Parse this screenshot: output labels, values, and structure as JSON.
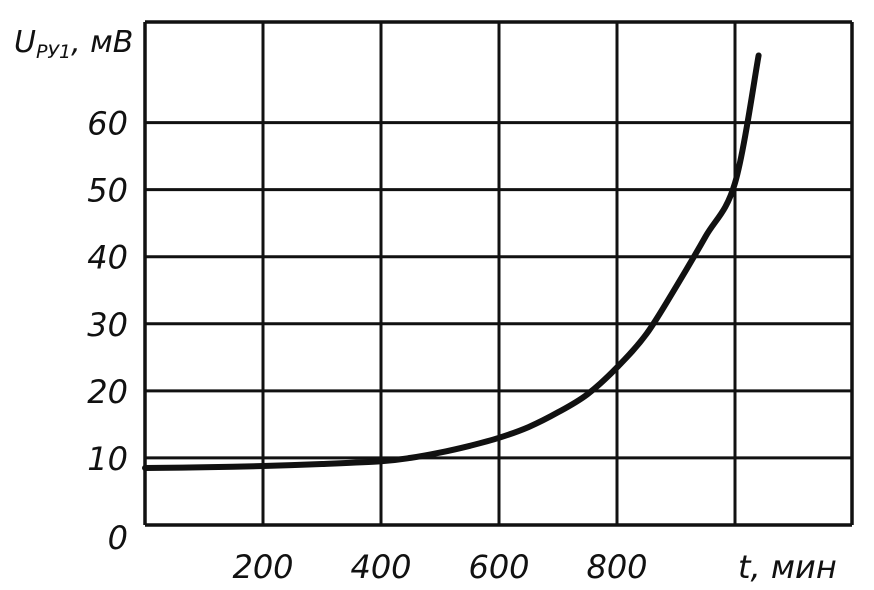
{
  "chart_data": {
    "type": "line",
    "title": "",
    "xlabel": "t, мин",
    "ylabel_main": "U",
    "ylabel_sub": "РУ1",
    "ylabel_unit": ", мВ",
    "xlim": [
      0,
      1000
    ],
    "ylim": [
      0,
      70
    ],
    "grid": true,
    "x_ticks": [
      200,
      400,
      600,
      800
    ],
    "x_tick_labels": [
      "200",
      "400",
      "600",
      "800"
    ],
    "y_ticks": [
      0,
      10,
      20,
      30,
      40,
      50,
      60
    ],
    "y_tick_labels": [
      "0",
      "10",
      "20",
      "30",
      "40",
      "50",
      "60"
    ],
    "series": [
      {
        "color": "#111111",
        "x": [
          0,
          100,
          200,
          300,
          400,
          450,
          500,
          550,
          600,
          650,
          700,
          750,
          800,
          850,
          900,
          950,
          1000,
          1040
        ],
        "y": [
          8.5,
          8.6,
          8.8,
          9.1,
          9.5,
          10.0,
          10.8,
          11.8,
          13.0,
          14.6,
          16.8,
          19.5,
          23.5,
          28.5,
          35.5,
          43.0,
          51.0,
          70.0
        ]
      }
    ]
  }
}
